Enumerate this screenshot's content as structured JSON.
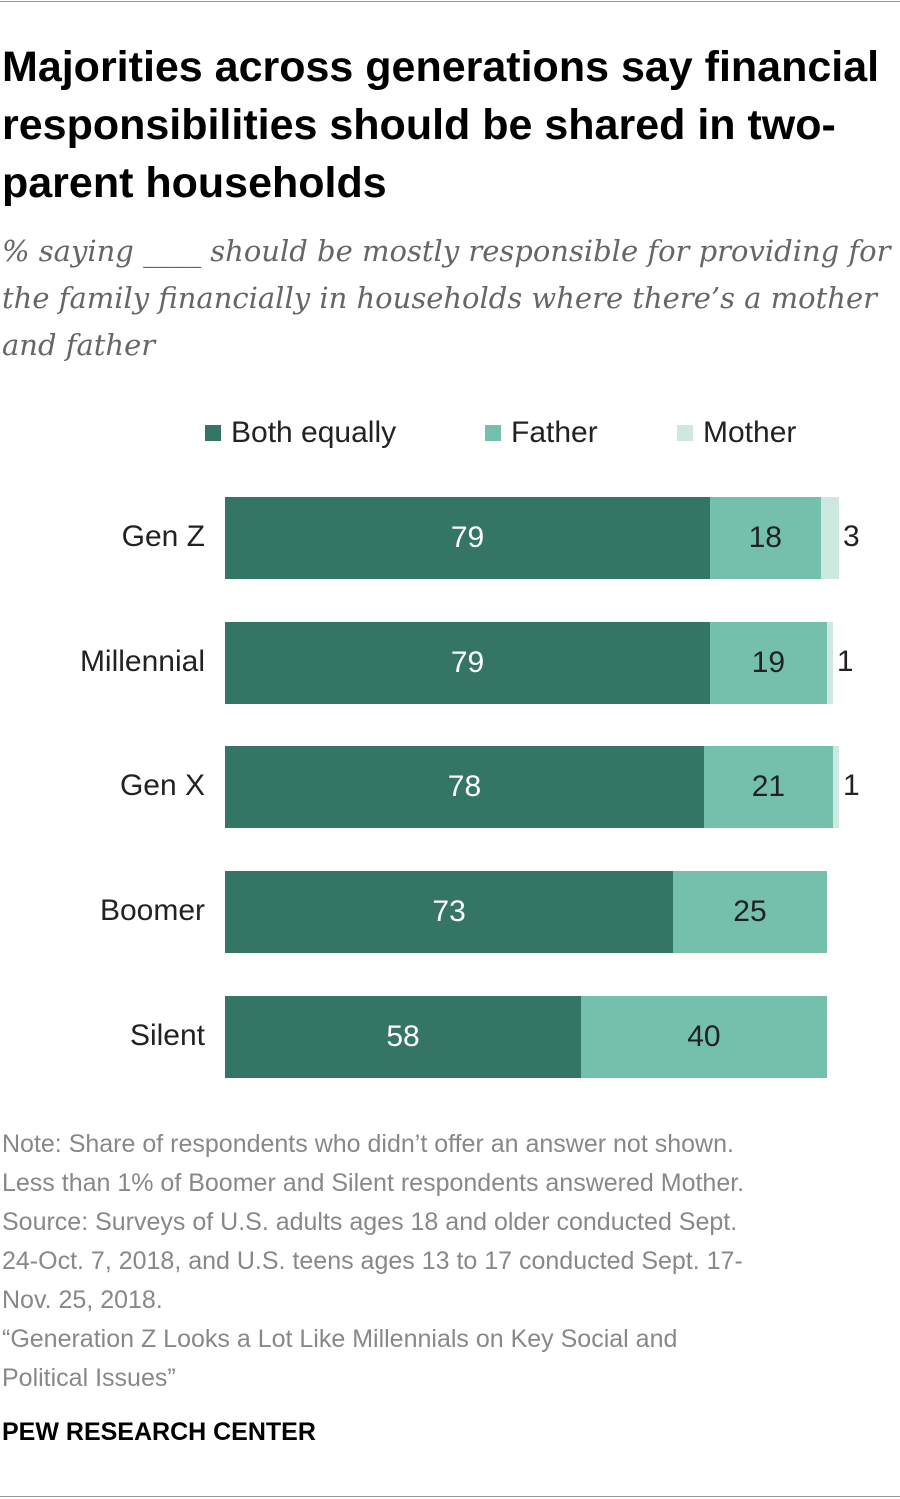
{
  "chart_data": {
    "type": "bar",
    "orientation": "horizontal",
    "stacked": true,
    "title": "Majorities across generations say financial responsibilities should be shared in two-parent households",
    "subtitle": "% saying ____ should be mostly responsible for providing for the family financially in households where there’s a mother and father",
    "categories": [
      "Gen Z",
      "Millennial",
      "Gen X",
      "Boomer",
      "Silent"
    ],
    "series": [
      {
        "name": "Both equally",
        "color": "#357565",
        "values": [
          79,
          79,
          78,
          73,
          58
        ]
      },
      {
        "name": "Father",
        "color": "#74c0ac",
        "values": [
          18,
          19,
          21,
          25,
          40
        ]
      },
      {
        "name": "Mother",
        "color": "#cde8e1",
        "values": [
          3,
          1,
          1,
          null,
          null
        ]
      }
    ],
    "xlim": [
      0,
      100
    ],
    "legend": "top",
    "grid": false
  },
  "notes": [
    "Note: Share of respondents who didn’t offer an answer not shown.",
    "Less than 1% of Boomer and Silent respondents answered Mother.",
    "Source: Surveys of U.S. adults ages 18 and older conducted Sept.",
    "24-Oct. 7, 2018, and U.S. teens ages 13 to 17 conducted Sept. 17-",
    "Nov. 25, 2018.",
    "“Generation Z Looks a Lot Like Millennials on Key Social and",
    "Political Issues”"
  ],
  "brand": "PEW RESEARCH CENTER"
}
